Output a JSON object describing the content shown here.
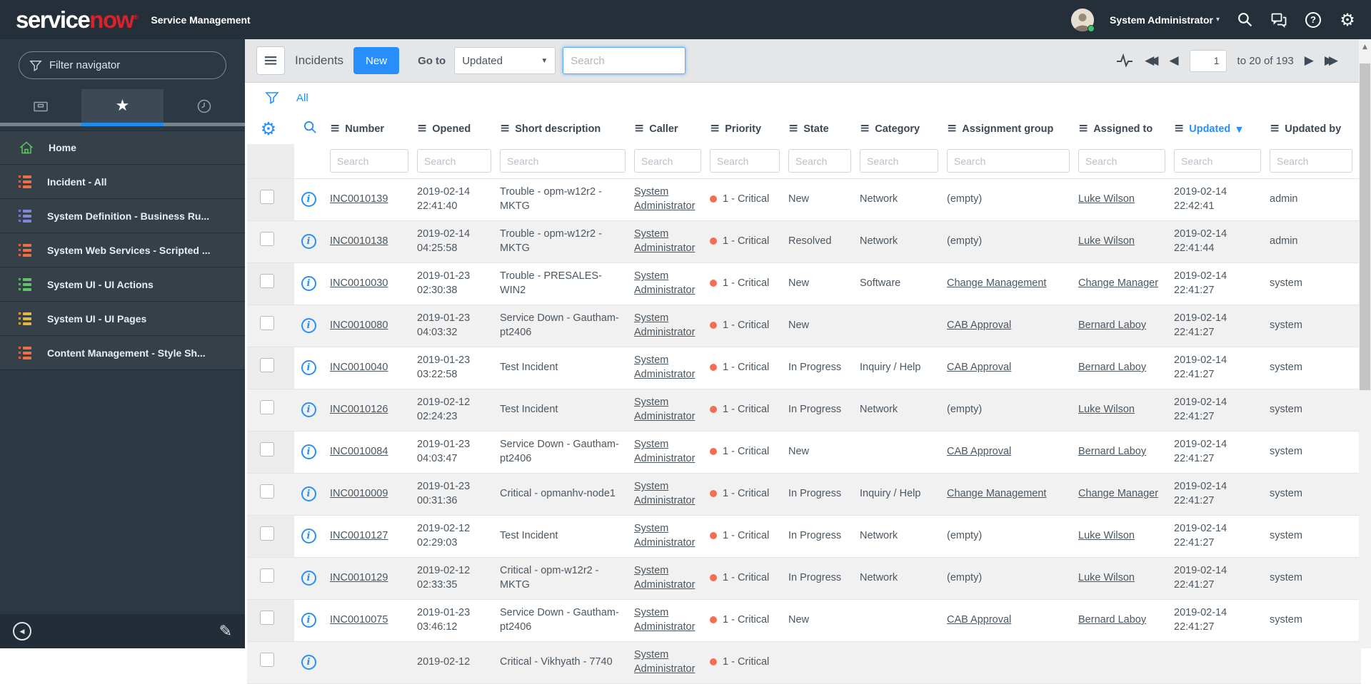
{
  "banner": {
    "logo_part1": "service",
    "logo_part2": "now",
    "app_title": "Service Management",
    "user_name": "System Administrator"
  },
  "sidebar": {
    "filter_placeholder": "Filter navigator",
    "items": [
      {
        "label": "Home",
        "icon": "home",
        "color": "#5fc75f"
      },
      {
        "label": "Incident - All",
        "icon": "list",
        "color": "#ed6f4a"
      },
      {
        "label": "System Definition - Business Ru...",
        "icon": "list",
        "color": "#8487d8"
      },
      {
        "label": "System Web Services - Scripted ...",
        "icon": "list",
        "color": "#ed6f4a"
      },
      {
        "label": "System UI - UI Actions",
        "icon": "list",
        "color": "#67c06e"
      },
      {
        "label": "System UI - UI Pages",
        "icon": "list",
        "color": "#e0b644"
      },
      {
        "label": "Content Management - Style Sh...",
        "icon": "list",
        "color": "#ed6f4a"
      }
    ]
  },
  "toolbar": {
    "title": "Incidents",
    "new_button": "New",
    "goto_label": "Go to",
    "goto_value": "Updated",
    "search_placeholder": "Search"
  },
  "pagination": {
    "page": "1",
    "range_text": "to 20 of 193"
  },
  "list": {
    "breadcrumb_all": "All",
    "filter_placeholder": "Search",
    "columns": [
      {
        "key": "num",
        "label": "Number"
      },
      {
        "key": "opn",
        "label": "Opened"
      },
      {
        "key": "dsc",
        "label": "Short description"
      },
      {
        "key": "clr",
        "label": "Caller"
      },
      {
        "key": "pri",
        "label": "Priority"
      },
      {
        "key": "sta",
        "label": "State"
      },
      {
        "key": "cat",
        "label": "Category"
      },
      {
        "key": "ag",
        "label": "Assignment group"
      },
      {
        "key": "at",
        "label": "Assigned to"
      },
      {
        "key": "upd",
        "label": "Updated",
        "sorted": true
      },
      {
        "key": "uby",
        "label": "Updated by"
      }
    ],
    "sort_direction": "desc",
    "rows": [
      {
        "number": "INC0010139",
        "opened": "2019-02-14 22:41:40",
        "short_description": "Trouble - opm-w12r2 - MKTG",
        "caller": "System Administrator",
        "priority": "1 - Critical",
        "state": "New",
        "category": "Network",
        "assignment_group": "(empty)",
        "assigned_to": "Luke Wilson",
        "updated": "2019-02-14 22:42:41",
        "updated_by": "admin"
      },
      {
        "number": "INC0010138",
        "opened": "2019-02-14 04:25:58",
        "short_description": "Trouble - opm-w12r2 - MKTG",
        "caller": "System Administrator",
        "priority": "1 - Critical",
        "state": "Resolved",
        "category": "Network",
        "assignment_group": "(empty)",
        "assigned_to": "Luke Wilson",
        "updated": "2019-02-14 22:41:44",
        "updated_by": "admin"
      },
      {
        "number": "INC0010030",
        "opened": "2019-01-23 02:30:38",
        "short_description": "Trouble - PRESALES-WIN2",
        "caller": "System Administrator",
        "priority": "1 - Critical",
        "state": "New",
        "category": "Software",
        "assignment_group": "Change Management",
        "assigned_to": "Change Manager",
        "updated": "2019-02-14 22:41:27",
        "updated_by": "system"
      },
      {
        "number": "INC0010080",
        "opened": "2019-01-23 04:03:32",
        "short_description": "Service Down - Gautham-pt2406",
        "caller": "System Administrator",
        "priority": "1 - Critical",
        "state": "New",
        "category": "",
        "assignment_group": "CAB Approval",
        "assigned_to": "Bernard Laboy",
        "updated": "2019-02-14 22:41:27",
        "updated_by": "system"
      },
      {
        "number": "INC0010040",
        "opened": "2019-01-23 03:22:58",
        "short_description": "Test Incident",
        "caller": "System Administrator",
        "priority": "1 - Critical",
        "state": "In Progress",
        "category": "Inquiry / Help",
        "assignment_group": "CAB Approval",
        "assigned_to": "Bernard Laboy",
        "updated": "2019-02-14 22:41:27",
        "updated_by": "system"
      },
      {
        "number": "INC0010126",
        "opened": "2019-02-12 02:24:23",
        "short_description": "Test Incident",
        "caller": "System Administrator",
        "priority": "1 - Critical",
        "state": "In Progress",
        "category": "Network",
        "assignment_group": "(empty)",
        "assigned_to": "Luke Wilson",
        "updated": "2019-02-14 22:41:27",
        "updated_by": "system"
      },
      {
        "number": "INC0010084",
        "opened": "2019-01-23 04:03:47",
        "short_description": "Service Down - Gautham-pt2406",
        "caller": "System Administrator",
        "priority": "1 - Critical",
        "state": "New",
        "category": "",
        "assignment_group": "CAB Approval",
        "assigned_to": "Bernard Laboy",
        "updated": "2019-02-14 22:41:27",
        "updated_by": "system"
      },
      {
        "number": "INC0010009",
        "opened": "2019-01-23 00:31:36",
        "short_description": "Critical - opmanhv-node1",
        "caller": "System Administrator",
        "priority": "1 - Critical",
        "state": "In Progress",
        "category": "Inquiry / Help",
        "assignment_group": "Change Management",
        "assigned_to": "Change Manager",
        "updated": "2019-02-14 22:41:27",
        "updated_by": "system"
      },
      {
        "number": "INC0010127",
        "opened": "2019-02-12 02:29:03",
        "short_description": "Test Incident",
        "caller": "System Administrator",
        "priority": "1 - Critical",
        "state": "In Progress",
        "category": "Network",
        "assignment_group": "(empty)",
        "assigned_to": "Luke Wilson",
        "updated": "2019-02-14 22:41:27",
        "updated_by": "system"
      },
      {
        "number": "INC0010129",
        "opened": "2019-02-12 02:33:35",
        "short_description": "Critical - opm-w12r2 - MKTG",
        "caller": "System Administrator",
        "priority": "1 - Critical",
        "state": "In Progress",
        "category": "Network",
        "assignment_group": "(empty)",
        "assigned_to": "Luke Wilson",
        "updated": "2019-02-14 22:41:27",
        "updated_by": "system"
      },
      {
        "number": "INC0010075",
        "opened": "2019-01-23 03:46:12",
        "short_description": "Service Down - Gautham-pt2406",
        "caller": "System Administrator",
        "priority": "1 - Critical",
        "state": "New",
        "category": "",
        "assignment_group": "CAB Approval",
        "assigned_to": "Bernard Laboy",
        "updated": "2019-02-14 22:41:27",
        "updated_by": "system"
      },
      {
        "number": "",
        "opened": "2019-02-12",
        "short_description": "Critical - Vikhyath - 7740",
        "caller": "System Administrator",
        "priority": "1 - Critical",
        "state": "",
        "category": "",
        "assignment_group": "",
        "assigned_to": "",
        "updated": "",
        "updated_by": "",
        "partial": true
      }
    ]
  }
}
